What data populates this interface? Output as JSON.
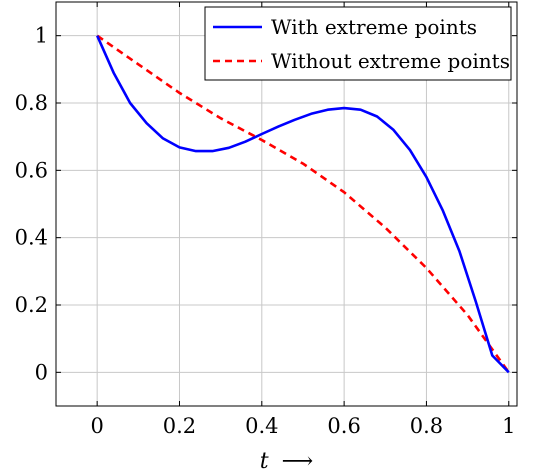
{
  "chart_data": {
    "type": "line",
    "xlabel_var": "t",
    "xlabel_arrow": "⟶",
    "xlim": [
      -0.1,
      1.02
    ],
    "ylim": [
      -0.1,
      1.1
    ],
    "grid": true,
    "legend_position": "top-right",
    "xticks": [
      0,
      0.2,
      0.4,
      0.6,
      0.8,
      1
    ],
    "xtick_labels": [
      "0",
      "0.2",
      "0.4",
      "0.6",
      "0.8",
      "1"
    ],
    "yticks": [
      0,
      0.2,
      0.4,
      0.6,
      0.8,
      1
    ],
    "ytick_labels": [
      "0",
      "0.2",
      "0.4",
      "0.6",
      "0.8",
      "1"
    ],
    "series": [
      {
        "name": "With extreme points",
        "color": "#0000ff",
        "dash": "solid",
        "x": [
          0,
          0.04,
          0.08,
          0.12,
          0.16,
          0.2,
          0.24,
          0.28,
          0.32,
          0.36,
          0.4,
          0.44,
          0.48,
          0.52,
          0.56,
          0.6,
          0.64,
          0.68,
          0.72,
          0.76,
          0.8,
          0.84,
          0.88,
          0.92,
          0.96,
          1.0
        ],
        "y": [
          1.0,
          0.89,
          0.8,
          0.74,
          0.695,
          0.668,
          0.657,
          0.657,
          0.667,
          0.685,
          0.708,
          0.73,
          0.75,
          0.768,
          0.78,
          0.785,
          0.78,
          0.76,
          0.72,
          0.66,
          0.58,
          0.48,
          0.36,
          0.21,
          0.05,
          0.0
        ]
      },
      {
        "name": "Without extreme points",
        "color": "#ff0000",
        "dash": "dashed",
        "x": [
          0,
          0.1,
          0.2,
          0.3,
          0.4,
          0.5,
          0.6,
          0.7,
          0.8,
          0.9,
          1.0
        ],
        "y": [
          1.0,
          0.915,
          0.83,
          0.755,
          0.69,
          0.62,
          0.535,
          0.43,
          0.31,
          0.17,
          0.0
        ]
      }
    ]
  }
}
